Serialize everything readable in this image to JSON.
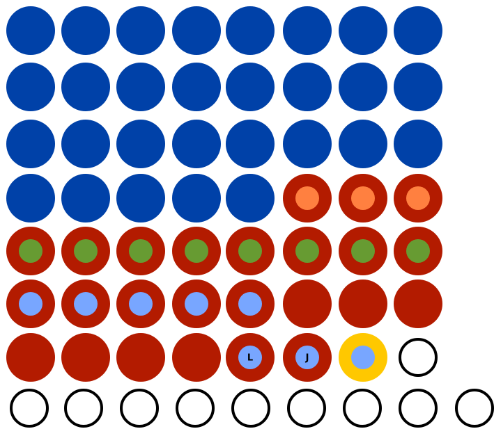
{
  "labels": [
    "L",
    "J"
  ]
}
